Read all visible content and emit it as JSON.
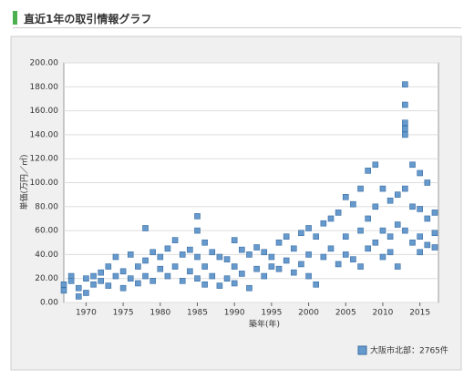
{
  "chart_data": {
    "type": "scatter",
    "title": "直近1年の取引情報グラフ",
    "x_label": "築年(年)",
    "y_label": "単価(万円／㎡)",
    "xlim": [
      1967,
      2017.5
    ],
    "ylim": [
      0,
      200
    ],
    "xticks": [
      1970,
      1975,
      1980,
      1985,
      1990,
      1995,
      2000,
      2005,
      2010,
      2015
    ],
    "yticks": [
      {
        "value": 0,
        "label": "0.00"
      },
      {
        "value": 20,
        "label": "20.00"
      },
      {
        "value": 40,
        "label": "40.00"
      },
      {
        "value": 60,
        "label": "60.00"
      },
      {
        "value": 80,
        "label": "80.00"
      },
      {
        "value": 100,
        "label": "100.00"
      },
      {
        "value": 120,
        "label": "120.00"
      },
      {
        "value": 140,
        "label": "140.00"
      },
      {
        "value": 160,
        "label": "160.00"
      },
      {
        "value": 180,
        "label": "180.00"
      },
      {
        "value": 200,
        "label": "200.00"
      }
    ],
    "x": [
      1967,
      1967,
      1968,
      1968,
      1969,
      1969,
      1970,
      1970,
      1971,
      1971,
      1972,
      1972,
      1973,
      1973,
      1974,
      1974,
      1975,
      1975,
      1976,
      1976,
      1977,
      1977,
      1978,
      1978,
      1978,
      1979,
      1979,
      1980,
      1980,
      1981,
      1981,
      1982,
      1982,
      1983,
      1983,
      1984,
      1984,
      1985,
      1985,
      1985,
      1985,
      1986,
      1986,
      1986,
      1987,
      1987,
      1988,
      1988,
      1989,
      1989,
      1990,
      1990,
      1990,
      1991,
      1991,
      1992,
      1992,
      1993,
      1993,
      1994,
      1994,
      1995,
      1995,
      1996,
      1996,
      1997,
      1997,
      1998,
      1998,
      1999,
      1999,
      2000,
      2000,
      2000,
      2001,
      2001,
      2002,
      2002,
      2003,
      2003,
      2004,
      2004,
      2005,
      2005,
      2005,
      2006,
      2006,
      2007,
      2007,
      2007,
      2008,
      2008,
      2008,
      2009,
      2009,
      2009,
      2010,
      2010,
      2010,
      2011,
      2011,
      2011,
      2012,
      2012,
      2012,
      2013,
      2013,
      2013,
      2013,
      2013,
      2013,
      2013,
      2014,
      2014,
      2014,
      2015,
      2015,
      2015,
      2015,
      2016,
      2016,
      2016,
      2017,
      2017,
      2017
    ],
    "series": [
      {
        "name": "大阪市北部：2765件",
        "color": "#6699cc",
        "values": [
          15,
          10,
          22,
          18,
          12,
          5,
          20,
          8,
          22,
          15,
          18,
          25,
          30,
          14,
          38,
          22,
          26,
          12,
          40,
          20,
          30,
          16,
          62,
          35,
          22,
          42,
          18,
          38,
          28,
          45,
          22,
          52,
          30,
          40,
          18,
          44,
          26,
          72,
          60,
          38,
          20,
          50,
          30,
          15,
          42,
          22,
          38,
          14,
          36,
          20,
          52,
          30,
          16,
          44,
          24,
          40,
          12,
          46,
          28,
          42,
          22,
          38,
          30,
          50,
          28,
          55,
          35,
          45,
          25,
          58,
          32,
          62,
          40,
          22,
          55,
          15,
          66,
          38,
          70,
          45,
          75,
          32,
          88,
          55,
          40,
          82,
          36,
          95,
          60,
          30,
          110,
          70,
          45,
          115,
          80,
          50,
          95,
          60,
          38,
          85,
          55,
          42,
          90,
          65,
          30,
          182,
          165,
          150,
          145,
          140,
          95,
          60,
          115,
          80,
          50,
          108,
          78,
          55,
          42,
          100,
          70,
          48,
          75,
          58,
          46
        ]
      }
    ],
    "grid": true,
    "legend": "bottom-right"
  }
}
